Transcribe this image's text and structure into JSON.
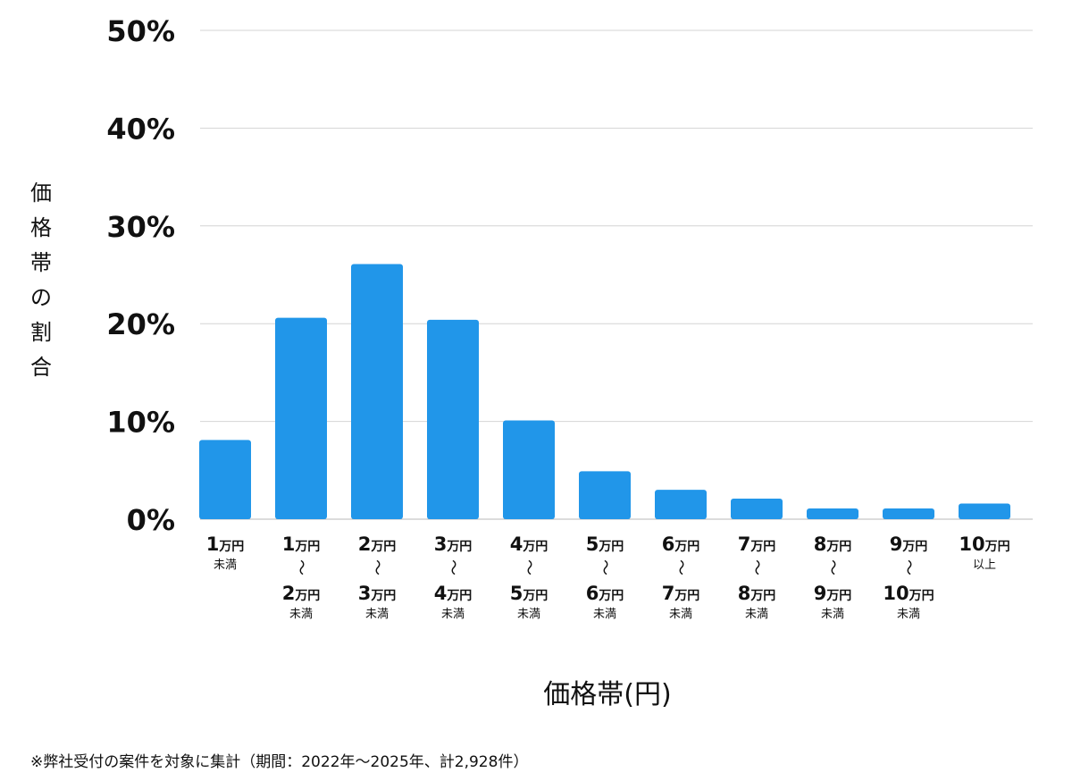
{
  "chart_data": {
    "type": "bar",
    "categories": [
      {
        "lines": [
          {
            "num": "1",
            "unit": "万円"
          }
        ],
        "suffix": "未満"
      },
      {
        "lines": [
          {
            "num": "1",
            "unit": "万円"
          },
          {
            "num": "2",
            "unit": "万円"
          }
        ],
        "suffix": "未満"
      },
      {
        "lines": [
          {
            "num": "2",
            "unit": "万円"
          },
          {
            "num": "3",
            "unit": "万円"
          }
        ],
        "suffix": "未満"
      },
      {
        "lines": [
          {
            "num": "3",
            "unit": "万円"
          },
          {
            "num": "4",
            "unit": "万円"
          }
        ],
        "suffix": "未満"
      },
      {
        "lines": [
          {
            "num": "4",
            "unit": "万円"
          },
          {
            "num": "5",
            "unit": "万円"
          }
        ],
        "suffix": "未満"
      },
      {
        "lines": [
          {
            "num": "5",
            "unit": "万円"
          },
          {
            "num": "6",
            "unit": "万円"
          }
        ],
        "suffix": "未満"
      },
      {
        "lines": [
          {
            "num": "6",
            "unit": "万円"
          },
          {
            "num": "7",
            "unit": "万円"
          }
        ],
        "suffix": "未満"
      },
      {
        "lines": [
          {
            "num": "7",
            "unit": "万円"
          },
          {
            "num": "8",
            "unit": "万円"
          }
        ],
        "suffix": "未満"
      },
      {
        "lines": [
          {
            "num": "8",
            "unit": "万円"
          },
          {
            "num": "9",
            "unit": "万円"
          }
        ],
        "suffix": "未満"
      },
      {
        "lines": [
          {
            "num": "9",
            "unit": "万円"
          },
          {
            "num": "10",
            "unit": "万円"
          }
        ],
        "suffix": "未満"
      },
      {
        "lines": [
          {
            "num": "10",
            "unit": "万円"
          }
        ],
        "suffix": "以上"
      }
    ],
    "range_symbol": "〜",
    "values": [
      8.1,
      20.6,
      26.1,
      20.4,
      10.1,
      4.9,
      3.0,
      2.1,
      1.1,
      1.1,
      1.6
    ],
    "ylim": [
      0,
      50
    ],
    "yticks": [
      0,
      10,
      20,
      30,
      40,
      50
    ],
    "ytick_labels": [
      "0%",
      "10%",
      "20%",
      "30%",
      "40%",
      "50%"
    ],
    "ylabel": "価格帯の割合",
    "xlabel": "価格帯(円)",
    "grid": true,
    "bar_color": "#2196e9",
    "grid_color": "#d4d4d4"
  },
  "footnote": "※弊社受付の案件を対象に集計（期間：2022年〜2025年、計2,928件）"
}
